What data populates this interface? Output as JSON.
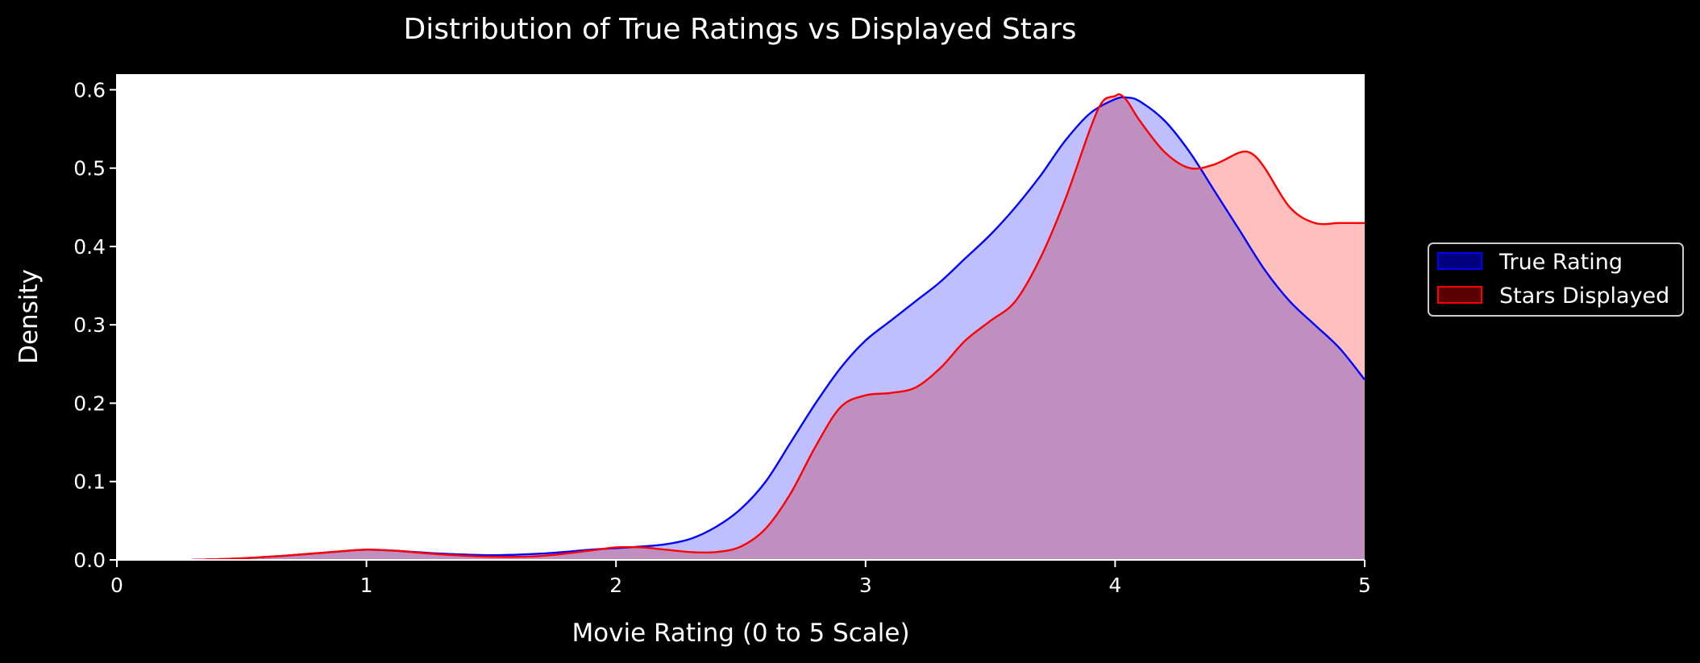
{
  "chart_data": {
    "type": "area",
    "title": "Distribution of True Ratings vs Displayed Stars",
    "xlabel": "Movie Rating (0 to 5 Scale)",
    "ylabel": "Density",
    "xlim": [
      0,
      5
    ],
    "ylim": [
      0,
      0.62
    ],
    "xticks": [
      "0",
      "1",
      "2",
      "3",
      "4",
      "5"
    ],
    "yticks": [
      "0.0",
      "0.1",
      "0.2",
      "0.3",
      "0.4",
      "0.5",
      "0.6"
    ],
    "grid": false,
    "legend": "right-outside",
    "colors": {
      "background": "#000000",
      "plot_area": "#ffffff",
      "text": "#ffffff",
      "true_line": "#0000ff",
      "true_fill": "#bfbfff",
      "stars_line": "#ff0000",
      "stars_fill": "#ffbfbf",
      "overlap_fill": "#cf8fc0"
    },
    "series": [
      {
        "name": "True Rating",
        "color": "#0000ff",
        "x": [
          0.3,
          0.5,
          0.7,
          0.9,
          1.0,
          1.1,
          1.3,
          1.5,
          1.7,
          1.9,
          2.0,
          2.1,
          2.2,
          2.3,
          2.4,
          2.5,
          2.6,
          2.7,
          2.8,
          2.9,
          3.0,
          3.1,
          3.2,
          3.3,
          3.4,
          3.5,
          3.6,
          3.7,
          3.8,
          3.9,
          4.0,
          4.05,
          4.1,
          4.2,
          4.3,
          4.4,
          4.5,
          4.6,
          4.7,
          4.8,
          4.9,
          5.0
        ],
        "values": [
          0.0,
          0.002,
          0.006,
          0.011,
          0.013,
          0.012,
          0.008,
          0.006,
          0.008,
          0.013,
          0.015,
          0.017,
          0.02,
          0.027,
          0.042,
          0.065,
          0.1,
          0.15,
          0.2,
          0.245,
          0.28,
          0.305,
          0.33,
          0.355,
          0.385,
          0.415,
          0.45,
          0.49,
          0.535,
          0.57,
          0.588,
          0.59,
          0.585,
          0.56,
          0.52,
          0.47,
          0.42,
          0.37,
          0.33,
          0.3,
          0.27,
          0.23
        ]
      },
      {
        "name": "Stars Displayed",
        "color": "#ff0000",
        "x": [
          0.3,
          0.5,
          0.7,
          0.9,
          1.0,
          1.1,
          1.3,
          1.5,
          1.7,
          1.9,
          2.0,
          2.1,
          2.2,
          2.3,
          2.4,
          2.5,
          2.6,
          2.7,
          2.8,
          2.9,
          3.0,
          3.1,
          3.2,
          3.3,
          3.4,
          3.5,
          3.6,
          3.7,
          3.8,
          3.9,
          3.95,
          4.0,
          4.02,
          4.05,
          4.1,
          4.2,
          4.3,
          4.4,
          4.5,
          4.55,
          4.6,
          4.7,
          4.8,
          4.9,
          5.0
        ],
        "values": [
          0.0,
          0.002,
          0.006,
          0.011,
          0.013,
          0.012,
          0.007,
          0.004,
          0.005,
          0.012,
          0.016,
          0.016,
          0.013,
          0.01,
          0.01,
          0.017,
          0.04,
          0.085,
          0.145,
          0.195,
          0.21,
          0.213,
          0.22,
          0.245,
          0.28,
          0.305,
          0.33,
          0.385,
          0.46,
          0.55,
          0.585,
          0.592,
          0.594,
          0.585,
          0.56,
          0.52,
          0.5,
          0.505,
          0.52,
          0.518,
          0.5,
          0.45,
          0.43,
          0.43,
          0.43
        ]
      }
    ]
  }
}
